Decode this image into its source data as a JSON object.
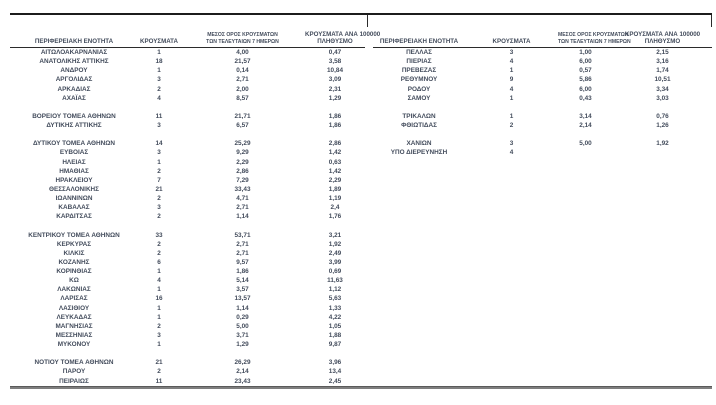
{
  "colors": {
    "text": "#434c5c",
    "top_border": "#1c1c1c",
    "bottom_border": "#7e7e7e"
  },
  "table": {
    "headers": {
      "region": "ΠΕΡΙΦΕΡΕΙΑΚΗ ΕΝΟΤΗΤΑ",
      "cases": "ΚΡΟΥΣΜΑΤΑ",
      "avg7_line1": "ΜΕΣΟΣ ΟΡΟΣ ΚΡΟΥΣΜΑΤΩΝ",
      "avg7_line2": "ΤΩΝ ΤΕΛΕΥΤΑΙΩΝ 7 ΗΜΕΡΩΝ",
      "per100k_line1": "ΚΡΟΥΣΜΑΤΑ ΑΝΑ 100000",
      "per100k_line2": "ΠΛΗΘΥΣΜΟ"
    },
    "left_rows": [
      [
        "ΑΙΤΩΛΟΑΚΑΡΝΑΝΙΑΣ",
        "1",
        "4,00",
        "0,47"
      ],
      [
        "ΑΝΑΤΟΛΙΚΗΣ ΑΤΤΙΚΗΣ",
        "18",
        "21,57",
        "3,58"
      ],
      [
        "ΑΝΔΡΟΥ",
        "1",
        "0,14",
        "10,84"
      ],
      [
        "ΑΡΓΟΛΙΔΑΣ",
        "3",
        "2,71",
        "3,09"
      ],
      [
        "ΑΡΚΑΔΙΑΣ",
        "2",
        "2,00",
        "2,31"
      ],
      [
        "ΑΧΑΪΑΣ",
        "4",
        "8,57",
        "1,29"
      ],
      [
        "",
        "",
        "",
        ""
      ],
      [
        "ΒΟΡΕΙΟΥ ΤΟΜΕΑ ΑΘΗΝΩΝ",
        "11",
        "21,71",
        "1,86"
      ],
      [
        "ΔΥΤΙΚΗΣ ΑΤΤΙΚΗΣ",
        "3",
        "6,57",
        "1,86"
      ],
      [
        "",
        "",
        "",
        ""
      ],
      [
        "ΔΥΤΙΚΟΥ ΤΟΜΕΑ ΑΘΗΝΩΝ",
        "14",
        "25,29",
        "2,86"
      ],
      [
        "ΕΥΒΟΙΑΣ",
        "3",
        "9,29",
        "1,42"
      ],
      [
        "ΗΛΕΙΑΣ",
        "1",
        "2,29",
        "0,63"
      ],
      [
        "ΗΜΑΘΙΑΣ",
        "2",
        "2,86",
        "1,42"
      ],
      [
        "ΗΡΑΚΛΕΙΟΥ",
        "7",
        "7,29",
        "2,29"
      ],
      [
        "ΘΕΣΣΑΛΟΝΙΚΗΣ",
        "21",
        "33,43",
        "1,89"
      ],
      [
        "ΙΩΑΝΝΙΝΩΝ",
        "2",
        "4,71",
        "1,19"
      ],
      [
        "ΚΑΒΑΛΑΣ",
        "3",
        "2,71",
        "2,4"
      ],
      [
        "ΚΑΡΔΙΤΣΑΣ",
        "2",
        "1,14",
        "1,76"
      ],
      [
        "",
        "",
        "",
        ""
      ],
      [
        "ΚΕΝΤΡΙΚΟΥ ΤΟΜΕΑ ΑΘΗΝΩΝ",
        "33",
        "53,71",
        "3,21"
      ],
      [
        "ΚΕΡΚΥΡΑΣ",
        "2",
        "2,71",
        "1,92"
      ],
      [
        "ΚΙΛΚΙΣ",
        "2",
        "2,71",
        "2,49"
      ],
      [
        "ΚΟΖΑΝΗΣ",
        "6",
        "9,57",
        "3,99"
      ],
      [
        "ΚΟΡΙΝΘΙΑΣ",
        "1",
        "1,86",
        "0,69"
      ],
      [
        "ΚΩ",
        "4",
        "5,14",
        "11,63"
      ],
      [
        "ΛΑΚΩΝΙΑΣ",
        "1",
        "3,57",
        "1,12"
      ],
      [
        "ΛΑΡΙΣΑΣ",
        "16",
        "13,57",
        "5,63"
      ],
      [
        "ΛΑΣΙΘΙΟΥ",
        "1",
        "1,14",
        "1,33"
      ],
      [
        "ΛΕΥΚΑΔΑΣ",
        "1",
        "0,29",
        "4,22"
      ],
      [
        "ΜΑΓΝΗΣΙΑΣ",
        "2",
        "5,00",
        "1,05"
      ],
      [
        "ΜΕΣΣΗΝΙΑΣ",
        "3",
        "3,71",
        "1,88"
      ],
      [
        "ΜΥΚΟΝΟΥ",
        "1",
        "1,29",
        "9,87"
      ],
      [
        "",
        "",
        "",
        ""
      ],
      [
        "ΝΟΤΙΟΥ ΤΟΜΕΑ ΑΘΗΝΩΝ",
        "21",
        "26,29",
        "3,96"
      ],
      [
        "ΠΑΡΟΥ",
        "2",
        "2,14",
        "13,4"
      ],
      [
        "ΠΕΙΡΑΙΩΣ",
        "11",
        "23,43",
        "2,45"
      ]
    ],
    "right_rows": [
      [
        "ΠΕΛΛΑΣ",
        "3",
        "1,00",
        "2,15"
      ],
      [
        "ΠΙΕΡΙΑΣ",
        "4",
        "6,00",
        "3,16"
      ],
      [
        "ΠΡΕΒΕΖΑΣ",
        "1",
        "0,57",
        "1,74"
      ],
      [
        "ΡΕΘΥΜΝΟΥ",
        "9",
        "5,86",
        "10,51"
      ],
      [
        "ΡΟΔΟΥ",
        "4",
        "6,00",
        "3,34"
      ],
      [
        "ΣΑΜΟΥ",
        "1",
        "0,43",
        "3,03"
      ],
      [
        "",
        "",
        "",
        ""
      ],
      [
        "ΤΡΙΚΑΛΩΝ",
        "1",
        "3,14",
        "0,76"
      ],
      [
        "ΦΘΙΩΤΙΔΑΣ",
        "2",
        "2,14",
        "1,26"
      ],
      [
        "",
        "",
        "",
        ""
      ],
      [
        "ΧΑΝΙΩΝ",
        "3",
        "5,00",
        "1,92"
      ],
      [
        "ΥΠΟ ΔΙΕΡΕΥΝΗΣΗ",
        "4",
        "",
        ""
      ]
    ]
  }
}
